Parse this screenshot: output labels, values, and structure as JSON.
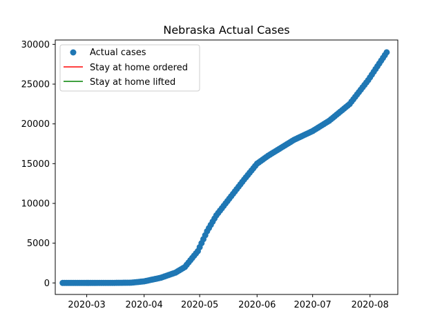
{
  "chart_data": {
    "type": "scatter",
    "title": "Nebraska Actual Cases",
    "xlabel": "",
    "ylabel": "",
    "x_type": "date",
    "xlim": [
      "2020-02-13",
      "2020-08-16"
    ],
    "ylim": [
      -1450,
      30550
    ],
    "x_ticks": [
      "2020-03",
      "2020-04",
      "2020-05",
      "2020-06",
      "2020-07",
      "2020-08"
    ],
    "x_tick_dates": [
      "2020-03-01",
      "2020-04-01",
      "2020-05-01",
      "2020-06-01",
      "2020-07-01",
      "2020-08-01"
    ],
    "y_ticks": [
      0,
      5000,
      10000,
      15000,
      20000,
      25000,
      30000
    ],
    "grid": false,
    "legend_position": "top-left",
    "legend": [
      {
        "label": "Actual cases",
        "marker": "circle",
        "color": "#1f77b4"
      },
      {
        "label": "Stay at home ordered",
        "marker": "line",
        "color": "#ff0000"
      },
      {
        "label": "Stay at home lifted",
        "marker": "line",
        "color": "#008000"
      }
    ],
    "series": [
      {
        "name": "Actual cases",
        "color": "#1f77b4",
        "points": [
          [
            "2020-02-17",
            0
          ],
          [
            "2020-03-01",
            0
          ],
          [
            "2020-03-15",
            5
          ],
          [
            "2020-03-25",
            30
          ],
          [
            "2020-04-01",
            200
          ],
          [
            "2020-04-10",
            650
          ],
          [
            "2020-04-18",
            1300
          ],
          [
            "2020-04-23",
            2000
          ],
          [
            "2020-04-30",
            4000
          ],
          [
            "2020-05-05",
            6500
          ],
          [
            "2020-05-10",
            8500
          ],
          [
            "2020-05-20",
            11500
          ],
          [
            "2020-05-25",
            13000
          ],
          [
            "2020-06-01",
            15000
          ],
          [
            "2020-06-07",
            16000
          ],
          [
            "2020-06-14",
            17000
          ],
          [
            "2020-06-21",
            18000
          ],
          [
            "2020-07-01",
            19100
          ],
          [
            "2020-07-10",
            20400
          ],
          [
            "2020-07-21",
            22500
          ],
          [
            "2020-07-31",
            25500
          ],
          [
            "2020-08-10",
            29000
          ]
        ]
      }
    ]
  }
}
